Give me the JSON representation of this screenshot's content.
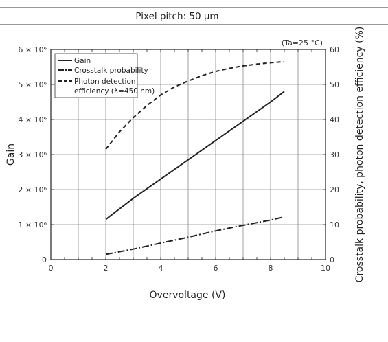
{
  "header": {
    "text": "Pixel pitch: 50 μm"
  },
  "chart_data": {
    "type": "line",
    "annotation": "(Ta=25 °C)",
    "xlabel": "Overvoltage (V)",
    "ylabel": "Gain",
    "y2label": "Crosstalk probability, photon detection efficiency (%)",
    "xlim": [
      0,
      10
    ],
    "ylim": [
      0,
      6000000
    ],
    "y2lim": [
      0,
      60
    ],
    "x_ticks": [
      "0",
      "2",
      "4",
      "6",
      "8",
      "10"
    ],
    "y_ticks": [
      "0",
      "1 × 10⁶",
      "2 × 10⁶",
      "3 × 10⁶",
      "4 × 10⁶",
      "5 × 10⁶",
      "6 × 10⁶"
    ],
    "y2_ticks": [
      "0",
      "10",
      "20",
      "30",
      "40",
      "50",
      "60"
    ],
    "grid": true,
    "legend_position": "top-left",
    "series": [
      {
        "name": "Gain",
        "axis": "left",
        "style": "solid",
        "x": [
          2,
          3,
          4,
          5,
          6,
          7,
          8,
          8.5
        ],
        "y": [
          1150000,
          1750000,
          2300000,
          2850000,
          3400000,
          3950000,
          4500000,
          4800000
        ]
      },
      {
        "name": "Crosstalk probability",
        "axis": "right",
        "style": "dashdot",
        "x": [
          2,
          3,
          4,
          5,
          6,
          7,
          8,
          8.5
        ],
        "y": [
          1.5,
          3,
          4.7,
          6.4,
          8.2,
          9.8,
          11.3,
          12.2
        ]
      },
      {
        "name": "Photon detection efficiency (λ=450 nm)",
        "legend_lines": [
          "Photon detection",
          "efficiency (λ=450 nm)"
        ],
        "axis": "right",
        "style": "dashed",
        "x": [
          2,
          2.5,
          3,
          3.5,
          4,
          4.5,
          5,
          5.5,
          6,
          6.5,
          7,
          7.5,
          8,
          8.5
        ],
        "y": [
          31.5,
          36.5,
          40.5,
          44,
          47,
          49.3,
          51,
          52.5,
          53.7,
          54.6,
          55.3,
          55.8,
          56.2,
          56.5
        ]
      }
    ]
  }
}
